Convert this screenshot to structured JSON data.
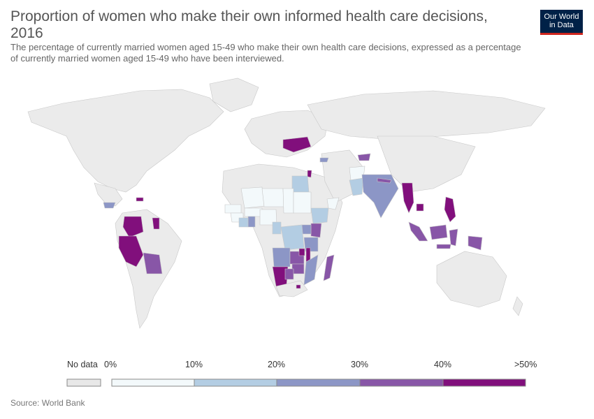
{
  "header": {
    "title": "Proportion of women who make their own informed health care decisions, 2016",
    "subtitle": "The percentage of currently married women aged 15-49 who make their own health care decisions, expressed as a percentage of currently married women aged 15-49 who have been interviewed."
  },
  "logo": {
    "line1": "Our World",
    "line2": "in Data"
  },
  "legend": {
    "no_data_label": "No data",
    "no_data_color": "#e8e8e8",
    "bins": [
      {
        "label": "0%",
        "color": "#f3f9fb"
      },
      {
        "label": "10%",
        "color": "#b3cde3"
      },
      {
        "label": "20%",
        "color": "#8c96c6"
      },
      {
        "label": "30%",
        "color": "#8856a7"
      },
      {
        "label": "40%",
        "color": "#810f7c"
      }
    ],
    "end_label": ">50%"
  },
  "source": "Source: World Bank",
  "colors": {
    "land_no_data": "#ebebeb",
    "border": "#c8c8c8",
    "bin_0_10": "#f3f9fb",
    "bin_10_20": "#b3cde3",
    "bin_20_30": "#8c96c6",
    "bin_30_40": "#8856a7",
    "bin_40_50_plus": "#810f7c"
  }
}
